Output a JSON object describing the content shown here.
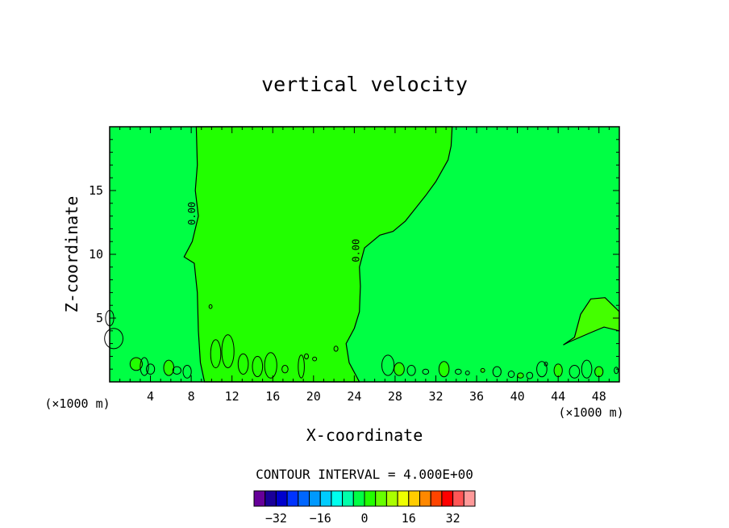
{
  "chart_data": {
    "type": "contour",
    "title": "vertical velocity",
    "xlabel": "X-coordinate",
    "ylabel": "Z-coordinate",
    "x_unit_left": "(×1000 m)",
    "x_unit_right": "(×1000 m)",
    "xlim": [
      0,
      50
    ],
    "ylim": [
      0,
      20
    ],
    "x_ticks": [
      4,
      8,
      12,
      16,
      20,
      24,
      28,
      32,
      36,
      40,
      44,
      48
    ],
    "y_ticks": [
      5,
      10,
      15
    ],
    "contour_interval_text": "CONTOUR INTERVAL = 4.000E+00",
    "contour_labels": [
      {
        "text": "0.00",
        "x": 8.4,
        "y": 13.2
      },
      {
        "text": "0.00",
        "x": 24.5,
        "y": 10.3
      }
    ],
    "fill_colors": {
      "background": "#00ff44",
      "region": "#22ff00",
      "positive_patch": "#44ff00"
    },
    "main_region": [
      [
        8.5,
        20
      ],
      [
        8.6,
        17
      ],
      [
        8.4,
        15
      ],
      [
        8.7,
        13
      ],
      [
        8.1,
        11
      ],
      [
        7.3,
        9.8
      ],
      [
        8.3,
        9.3
      ],
      [
        8.6,
        7
      ],
      [
        8.7,
        4
      ],
      [
        8.9,
        1.5
      ],
      [
        9.3,
        0
      ],
      [
        24.5,
        0
      ],
      [
        23.5,
        1.5
      ],
      [
        23.2,
        3
      ],
      [
        24.0,
        4.2
      ],
      [
        24.5,
        5.5
      ],
      [
        24.6,
        7.5
      ],
      [
        24.5,
        9
      ],
      [
        25.0,
        10.5
      ],
      [
        26.5,
        11.5
      ],
      [
        27.8,
        11.8
      ],
      [
        29,
        12.6
      ],
      [
        30,
        13.6
      ],
      [
        31,
        14.6
      ],
      [
        32,
        15.7
      ],
      [
        33.2,
        17.4
      ],
      [
        33.5,
        18.5
      ],
      [
        33.6,
        20
      ]
    ],
    "right_patch": [
      [
        50,
        5.5
      ],
      [
        48.6,
        6.6
      ],
      [
        47.2,
        6.5
      ],
      [
        46.2,
        5.3
      ],
      [
        45.6,
        3.5
      ],
      [
        44.5,
        2.9
      ],
      [
        45,
        3.1
      ],
      [
        47,
        3.8
      ],
      [
        48.5,
        4.3
      ],
      [
        50,
        4.0
      ]
    ],
    "colorbar": {
      "colors": [
        "#660099",
        "#1a0099",
        "#0000cc",
        "#0033ff",
        "#0066ff",
        "#0099ff",
        "#00ccff",
        "#00ffee",
        "#00ffaa",
        "#00ff44",
        "#22ff00",
        "#66ff00",
        "#aaff00",
        "#eeff00",
        "#ffcc00",
        "#ff8800",
        "#ff4400",
        "#ff0000",
        "#ff5555",
        "#ff9999"
      ],
      "tick_labels": [
        "−32",
        "−16",
        "0",
        "16",
        "32"
      ],
      "tick_values": [
        -32,
        -16,
        0,
        16,
        32
      ],
      "range": [
        -40,
        40
      ]
    }
  }
}
